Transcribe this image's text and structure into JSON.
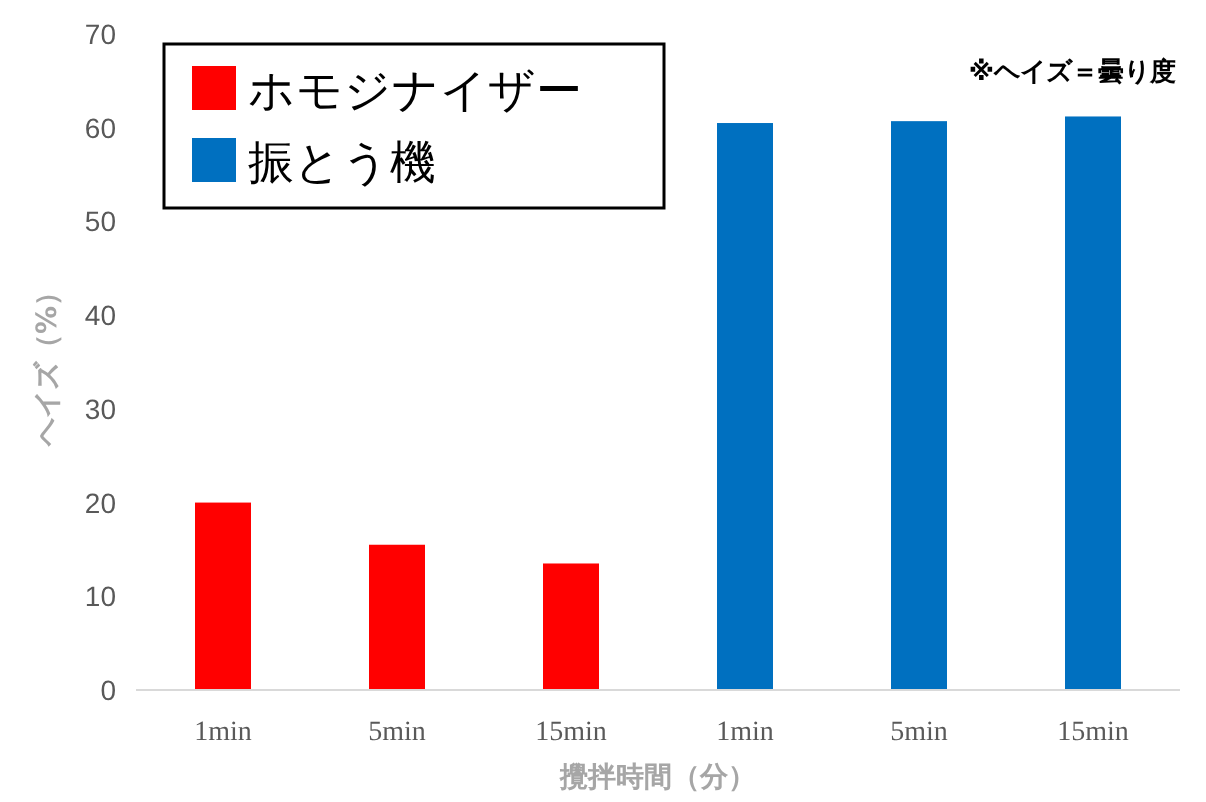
{
  "chart_data": {
    "type": "bar",
    "categories": [
      "1min",
      "5min",
      "15min",
      "1min",
      "5min",
      "15min"
    ],
    "series": [
      {
        "name": "ホモジナイザー",
        "color": "#ff0000",
        "values": [
          20,
          15.5,
          13.5,
          null,
          null,
          null
        ]
      },
      {
        "name": "振とう機",
        "color": "#0070c0",
        "values": [
          null,
          null,
          null,
          60.5,
          60.7,
          61.2
        ]
      }
    ],
    "ylim": [
      0,
      70
    ],
    "yticks": [
      0,
      10,
      20,
      30,
      40,
      50,
      60,
      70
    ],
    "xlabel": "攪拌時間（分）",
    "ylabel": "ヘイズ（%）",
    "annotations": [
      "※ヘイズ＝曇り度"
    ],
    "legend": "top left"
  }
}
